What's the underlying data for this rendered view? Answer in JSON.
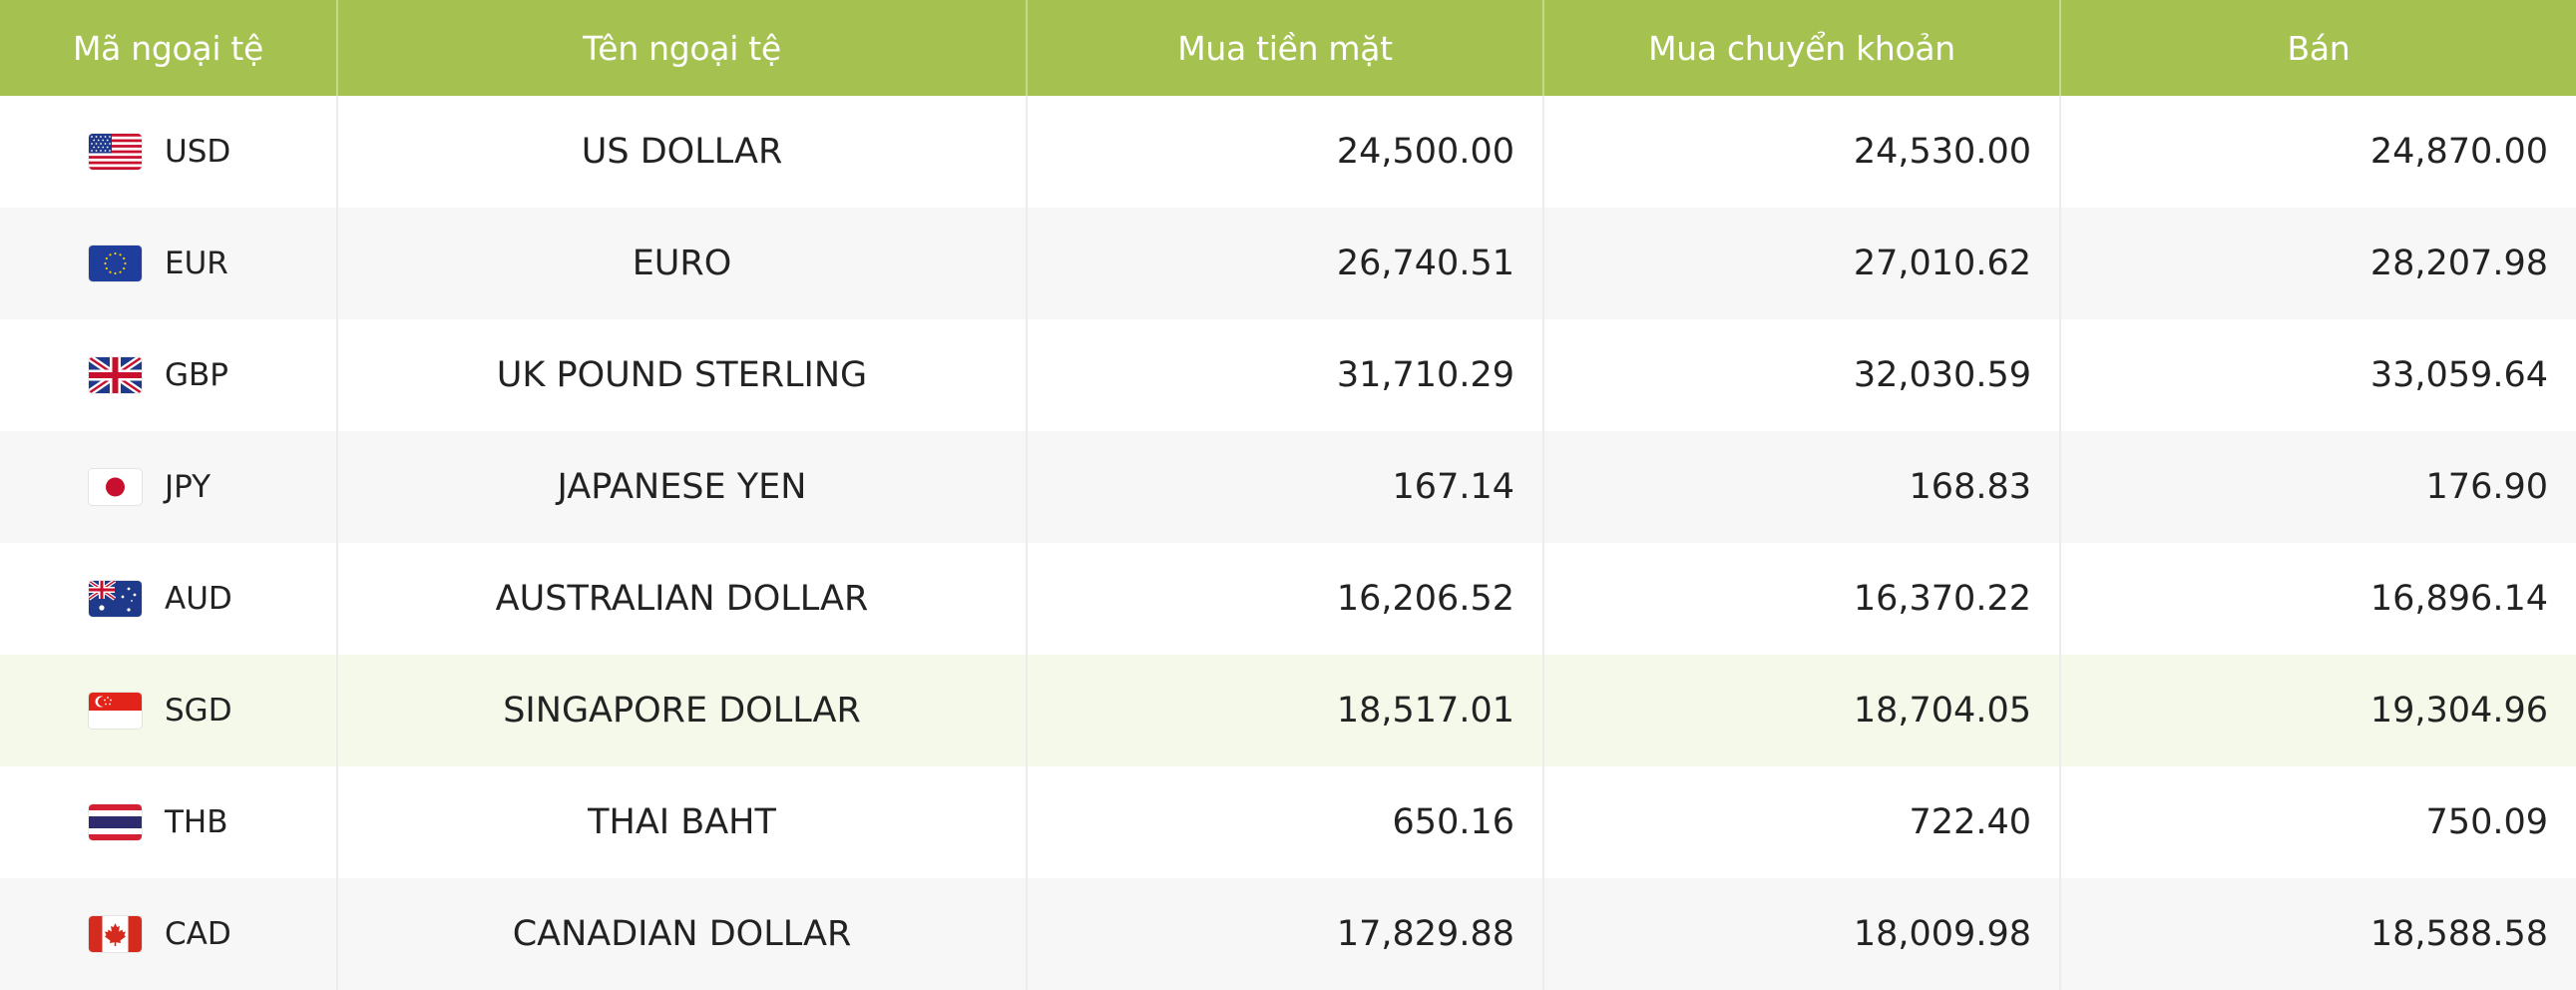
{
  "table": {
    "headers": [
      "Mã ngoại tệ",
      "Tên ngoại tệ",
      "Mua tiền mặt",
      "Mua chuyển khoản",
      "Bán"
    ],
    "rows": [
      {
        "flag": "us-flag-icon",
        "code": "USD",
        "name": "US DOLLAR",
        "buy_cash": "24,500.00",
        "buy_transfer": "24,530.00",
        "sell": "24,870.00"
      },
      {
        "flag": "eu-flag-icon",
        "code": "EUR",
        "name": "EURO",
        "buy_cash": "26,740.51",
        "buy_transfer": "27,010.62",
        "sell": "28,207.98"
      },
      {
        "flag": "uk-flag-icon",
        "code": "GBP",
        "name": "UK POUND STERLING",
        "buy_cash": "31,710.29",
        "buy_transfer": "32,030.59",
        "sell": "33,059.64"
      },
      {
        "flag": "japan-flag-icon",
        "code": "JPY",
        "name": "JAPANESE YEN",
        "buy_cash": "167.14",
        "buy_transfer": "168.83",
        "sell": "176.90"
      },
      {
        "flag": "australia-flag-icon",
        "code": "AUD",
        "name": "AUSTRALIAN DOLLAR",
        "buy_cash": "16,206.52",
        "buy_transfer": "16,370.22",
        "sell": "16,896.14"
      },
      {
        "flag": "singapore-flag-icon",
        "code": "SGD",
        "name": "SINGAPORE DOLLAR",
        "buy_cash": "18,517.01",
        "buy_transfer": "18,704.05",
        "sell": "19,304.96"
      },
      {
        "flag": "thailand-flag-icon",
        "code": "THB",
        "name": "THAI BAHT",
        "buy_cash": "650.16",
        "buy_transfer": "722.40",
        "sell": "750.09"
      },
      {
        "flag": "canada-flag-icon",
        "code": "CAD",
        "name": "CANADIAN DOLLAR",
        "buy_cash": "17,829.88",
        "buy_transfer": "18,009.98",
        "sell": "18,588.58"
      }
    ]
  },
  "colors": {
    "header_bg": "#a5c251",
    "header_text": "#ffffff",
    "row_alt_bg": "#f7f7f7",
    "row_highlight_bg": "#f4f9ea"
  }
}
